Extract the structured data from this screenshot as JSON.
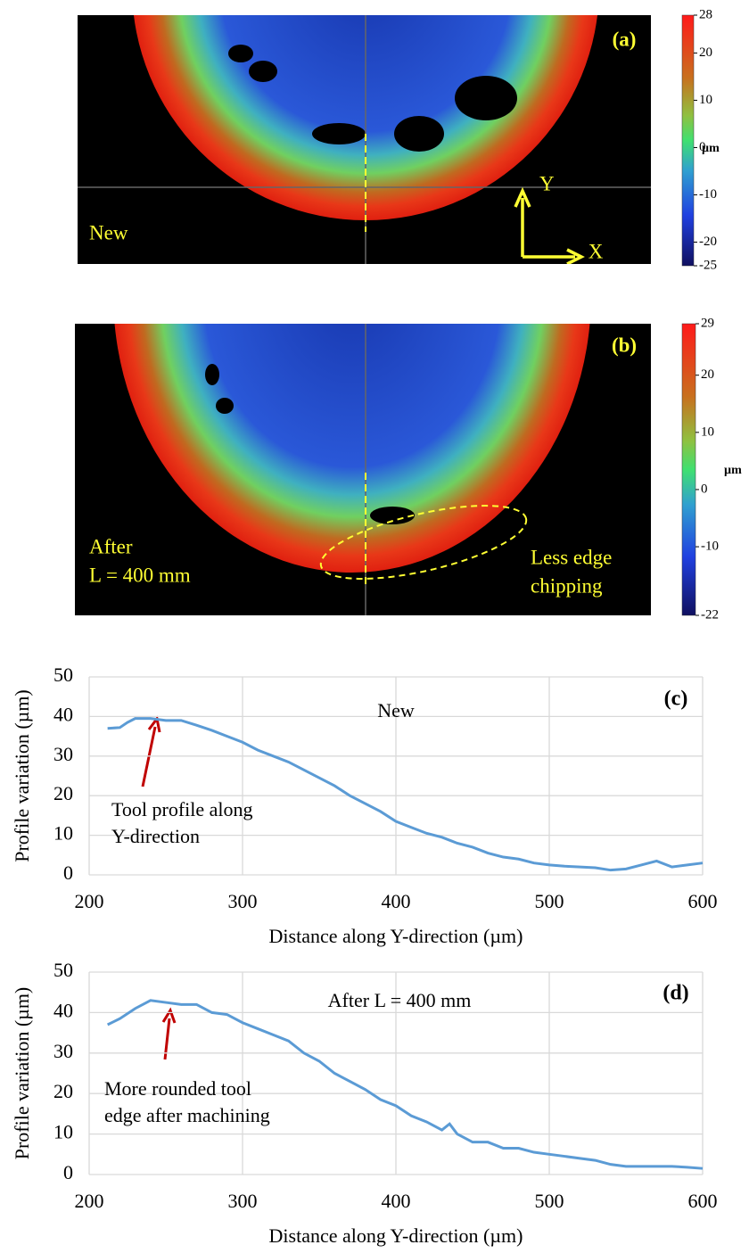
{
  "chart_data": [
    {
      "type": "heatmap",
      "label": "(a)",
      "note": [
        "New"
      ],
      "axes": [
        "Y",
        "X"
      ],
      "colorbar": {
        "unit": "µm",
        "lim": [
          -25,
          28
        ],
        "ticks": [
          28,
          20,
          10,
          0,
          -10,
          -20,
          -25
        ]
      }
    },
    {
      "type": "heatmap",
      "label": "(b)",
      "note": [
        "After",
        "L = 400  mm"
      ],
      "annotation": [
        "Less edge",
        "chipping"
      ],
      "colorbar": {
        "unit": "µm",
        "lim": [
          -22,
          29
        ],
        "ticks": [
          29,
          20,
          10,
          0,
          -10,
          -22
        ]
      }
    },
    {
      "type": "line",
      "label": "(c)",
      "title": "New",
      "annotation": [
        "Tool profile along",
        "Y-direction"
      ],
      "xlabel": "Distance along Y-direction  (µm)",
      "ylabel": "Profile  variation (µm)",
      "x": [
        212,
        220,
        225,
        230,
        240,
        250,
        260,
        270,
        280,
        290,
        300,
        310,
        320,
        330,
        340,
        350,
        360,
        370,
        380,
        390,
        400,
        410,
        420,
        430,
        440,
        450,
        460,
        470,
        480,
        490,
        500,
        510,
        520,
        530,
        540,
        550,
        560,
        570,
        580,
        590,
        600
      ],
      "values": [
        37,
        37.2,
        38.5,
        39.5,
        39.5,
        39,
        39,
        37.8,
        36.5,
        35,
        33.5,
        31.5,
        30,
        28.5,
        26.5,
        24.5,
        22.5,
        20,
        18,
        16,
        13.5,
        12,
        10.5,
        9.5,
        8,
        7,
        5.5,
        4.5,
        4,
        3,
        2.5,
        2.2,
        2,
        1.8,
        1.2,
        1.5,
        2.5,
        3.5,
        2,
        2.5,
        3
      ],
      "color": "#5b9bd5",
      "xlim": [
        200,
        600
      ],
      "ylim": [
        0,
        50
      ],
      "xticks": [
        200,
        300,
        400,
        500,
        600
      ],
      "yticks": [
        0,
        10,
        20,
        30,
        40,
        50
      ],
      "grid": true
    },
    {
      "type": "line",
      "label": "(d)",
      "title": "After L = 400 mm",
      "annotation": [
        "More rounded tool",
        "edge after machining"
      ],
      "xlabel": "Distance along Y-direction  (µm)",
      "ylabel": "Profile  variation (µm)",
      "x": [
        212,
        220,
        230,
        240,
        250,
        260,
        270,
        280,
        290,
        300,
        310,
        320,
        330,
        340,
        350,
        360,
        370,
        380,
        390,
        400,
        410,
        420,
        430,
        435,
        440,
        450,
        460,
        470,
        480,
        490,
        500,
        510,
        520,
        530,
        540,
        550,
        560,
        570,
        580,
        590,
        600
      ],
      "values": [
        37,
        38.5,
        41,
        43,
        42.5,
        42,
        42,
        40,
        39.5,
        37.5,
        36,
        34.5,
        33,
        30,
        28,
        25,
        23,
        21,
        18.5,
        17,
        14.5,
        13,
        11,
        12.5,
        10,
        8,
        8,
        6.5,
        6.5,
        5.5,
        5,
        4.5,
        4,
        3.5,
        2.5,
        2,
        2,
        2,
        2,
        1.8,
        1.5
      ],
      "color": "#5b9bd5",
      "xlim": [
        200,
        600
      ],
      "ylim": [
        0,
        50
      ],
      "xticks": [
        200,
        300,
        400,
        500,
        600
      ],
      "yticks": [
        0,
        10,
        20,
        30,
        40,
        50
      ],
      "grid": true
    }
  ]
}
